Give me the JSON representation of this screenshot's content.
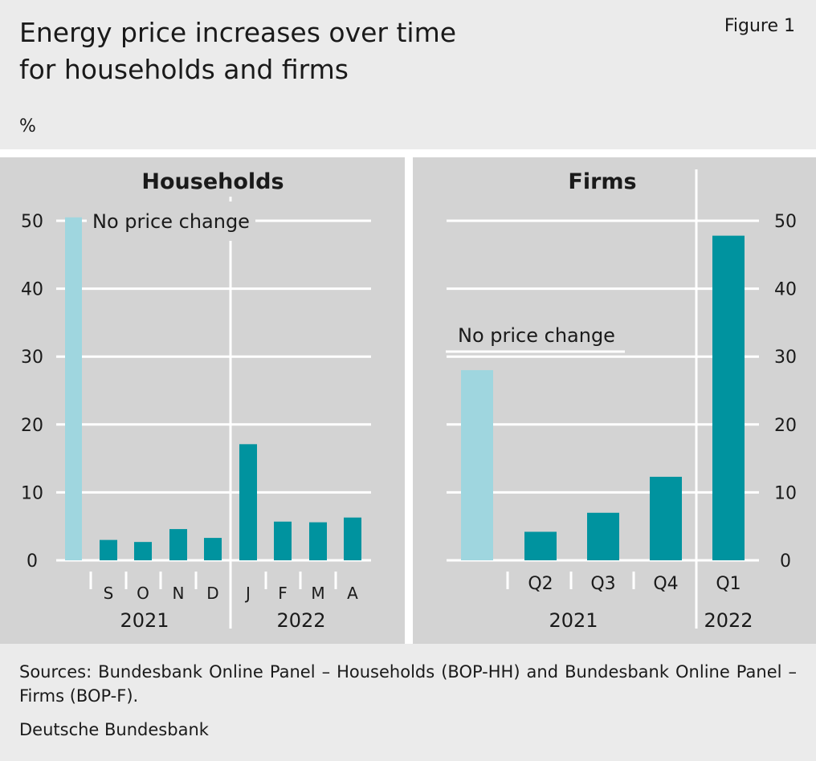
{
  "header": {
    "title_line1": "Energy price increases over time",
    "title_line2": "for households and firms",
    "figure_label": "Figure 1",
    "unit": "%"
  },
  "colors": {
    "panel_bg": "#d3d3d3",
    "no_change_bar": "#9fd6df",
    "bar": "#00939f",
    "grid": "#ffffff"
  },
  "chart_data": [
    {
      "type": "bar",
      "title": "Households",
      "ylim": [
        0,
        50
      ],
      "yticks": [
        0,
        10,
        20,
        30,
        40,
        50
      ],
      "axis_side": "left",
      "highlight": {
        "label": "No price change",
        "value": 50.5
      },
      "categories": [
        "S",
        "O",
        "N",
        "D",
        "J",
        "F",
        "M",
        "A"
      ],
      "values": [
        3.0,
        2.7,
        4.6,
        3.3,
        17.1,
        5.7,
        5.6,
        6.3
      ],
      "year_groups": [
        {
          "label": "2021",
          "categories": [
            "S",
            "O",
            "N",
            "D"
          ]
        },
        {
          "label": "2022",
          "categories": [
            "J",
            "F",
            "M",
            "A"
          ]
        }
      ],
      "grid": true
    },
    {
      "type": "bar",
      "title": "Firms",
      "ylim": [
        0,
        50
      ],
      "yticks": [
        0,
        10,
        20,
        30,
        40,
        50
      ],
      "axis_side": "right",
      "highlight": {
        "label": "No price change",
        "value": 28
      },
      "categories": [
        "Q2",
        "Q3",
        "Q4",
        "Q1"
      ],
      "values": [
        4.2,
        7.0,
        12.3,
        47.8
      ],
      "year_groups": [
        {
          "label": "2021",
          "categories": [
            "Q2",
            "Q3",
            "Q4"
          ]
        },
        {
          "label": "2022",
          "categories": [
            "Q1"
          ]
        }
      ],
      "grid": true
    }
  ],
  "footer": {
    "sources": "Sources: Bundesbank Online Panel – Households (BOP-HH) and Bundesbank Online Panel – Firms (BOP-F).",
    "publisher": "Deutsche Bundesbank"
  }
}
